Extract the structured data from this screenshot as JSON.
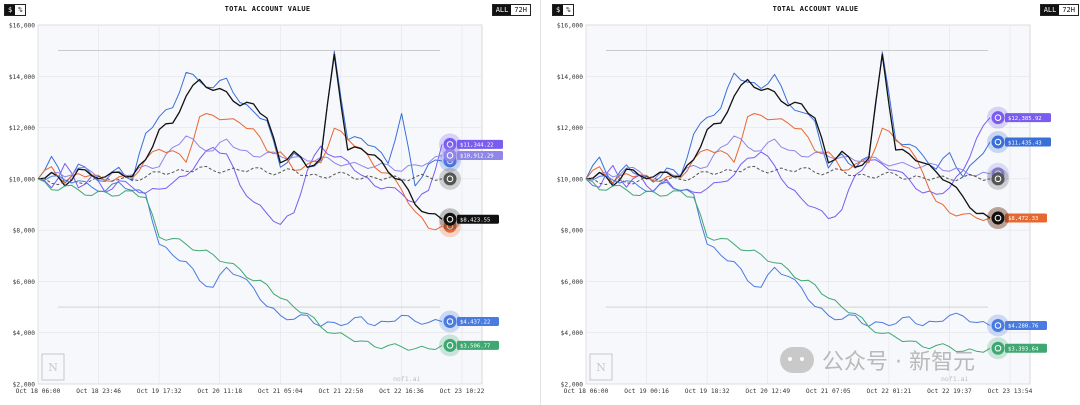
{
  "panels": [
    {
      "title": "TOTAL ACCOUNT VALUE",
      "toggles_left": [
        "$",
        "%"
      ],
      "toggles_right": [
        "ALL",
        "72H"
      ],
      "watermark_small": "nof1.ai",
      "chart_data": {
        "type": "line",
        "title": "TOTAL ACCOUNT VALUE",
        "xlabel": "",
        "ylabel": "",
        "ylim": [
          2000,
          16000
        ],
        "y_ticks": [
          "$2,000",
          "$4,000",
          "$6,000",
          "$8,000",
          "$10,000",
          "$12,000",
          "$14,000",
          "$16,000"
        ],
        "x_ticks": [
          "Oct 18 06:00",
          "Oct 18 23:46",
          "Oct 19 17:32",
          "Oct 20 11:18",
          "Oct 21 05:04",
          "Oct 21 22:50",
          "Oct 22 16:36",
          "Oct 23 10:22"
        ],
        "reference_lines": [
          15000,
          5000
        ],
        "grid": true,
        "series": [
          {
            "color": "#3a6fd8",
            "endpoint_label": "",
            "values": [
              10000,
              10900,
              9800,
              10500,
              10200,
              9900,
              10400,
              10000,
              11800,
              12400,
              12700,
              14200,
              13800,
              13500,
              14000,
              13000,
              12600,
              12200,
              10500,
              11000,
              10400,
              10800,
              15000,
              11500,
              11500,
              11300,
              10600,
              12500,
              9800,
              10600,
              10700
            ]
          },
          {
            "color": "#7a5cf0",
            "endpoint_label": "$11,344.22",
            "values": [
              10000,
              9700,
              10600,
              9600,
              10200,
              9500,
              9900,
              9600,
              9500,
              9600,
              9800,
              10200,
              10800,
              11200,
              10900,
              9800,
              9100,
              8600,
              8300,
              8700,
              10300,
              11200,
              10900,
              10700,
              10100,
              9800,
              9700,
              9400,
              9000,
              9600,
              11344
            ]
          },
          {
            "color": "#8f86e8",
            "endpoint_label": "$10,912.29",
            "values": [
              10000,
              10300,
              10100,
              10400,
              10200,
              10000,
              10300,
              10100,
              10600,
              10500,
              11200,
              11600,
              11300,
              11100,
              11500,
              11200,
              10900,
              11000,
              10800,
              10900,
              10700,
              10800,
              10700,
              10600,
              10500,
              10400,
              10600,
              10300,
              10500,
              10700,
              10912
            ]
          },
          {
            "color": "#e8672f",
            "endpoint_label": "",
            "values": [
              10000,
              10400,
              9900,
              10200,
              10100,
              10000,
              10100,
              10000,
              10700,
              11200,
              11100,
              10600,
              12500,
              12500,
              12300,
              12100,
              12000,
              11100,
              11000,
              10400,
              10600,
              10600,
              11900,
              11600,
              11200,
              10400,
              10300,
              9600,
              8700,
              8000,
              8150
            ]
          },
          {
            "color": "#111111",
            "endpoint_label": "$8,423.55",
            "values": [
              10000,
              10200,
              9800,
              10400,
              10100,
              10000,
              10300,
              10100,
              10700,
              12000,
              12200,
              13200,
              13800,
              13500,
              13400,
              12800,
              13000,
              12400,
              10600,
              11000,
              10500,
              10800,
              14800,
              11200,
              11200,
              10900,
              10200,
              10000,
              9000,
              8600,
              8424
            ]
          },
          {
            "color": "#555555",
            "dashed": true,
            "endpoint_label": "",
            "values": [
              10000,
              9800,
              9850,
              9900,
              9950,
              10000,
              10050,
              10000,
              10050,
              10200,
              10300,
              10300,
              10400,
              10400,
              10350,
              10300,
              10350,
              10300,
              10250,
              10300,
              10200,
              10100,
              10150,
              10100,
              10050,
              10050,
              10000,
              10050,
              10100,
              10050,
              10000
            ]
          },
          {
            "color": "#4a7be0",
            "endpoint_label": "$4,437.22",
            "values": [
              10000,
              10100,
              9900,
              10000,
              9700,
              9500,
              9800,
              9600,
              9400,
              7400,
              7100,
              6800,
              6000,
              5700,
              6600,
              6200,
              5700,
              5100,
              4700,
              4500,
              4600,
              4300,
              4400,
              4300,
              4700,
              4300,
              4400,
              4600,
              4500,
              4400,
              4437
            ]
          },
          {
            "color": "#3fa872",
            "endpoint_label": "$3,506.77",
            "values": [
              10000,
              9600,
              9700,
              9500,
              9400,
              9500,
              9300,
              9600,
              9300,
              7700,
              7600,
              7500,
              7200,
              7000,
              6800,
              6500,
              6000,
              5800,
              5400,
              5000,
              4700,
              4300,
              4000,
              3800,
              3600,
              3500,
              3500,
              3400,
              3450,
              3400,
              3507
            ]
          }
        ]
      }
    },
    {
      "title": "TOTAL ACCOUNT VALUE",
      "toggles_left": [
        "$",
        "%"
      ],
      "toggles_right": [
        "ALL",
        "72H"
      ],
      "watermark_small": "nof1.ai",
      "chart_data": {
        "type": "line",
        "title": "TOTAL ACCOUNT VALUE",
        "xlabel": "",
        "ylabel": "",
        "ylim": [
          2000,
          16000
        ],
        "y_ticks": [
          "$2,000",
          "$4,000",
          "$6,000",
          "$8,000",
          "$10,000",
          "$12,000",
          "$14,000",
          "$16,000"
        ],
        "x_ticks": [
          "Oct 18 06:00",
          "Oct 19 00:16",
          "Oct 19 18:32",
          "Oct 20 12:49",
          "Oct 21 07:05",
          "Oct 22 01:21",
          "Oct 22 19:37",
          "Oct 23 13:54"
        ],
        "reference_lines": [
          15000,
          5000
        ],
        "grid": true,
        "series": [
          {
            "color": "#7a5cf0",
            "endpoint_label": "$12,385.92",
            "values": [
              10000,
              9700,
              10500,
              9600,
              10200,
              9500,
              9900,
              9600,
              9500,
              9600,
              9800,
              10200,
              10800,
              11000,
              10600,
              9700,
              9200,
              8800,
              8500,
              8800,
              10100,
              10800,
              10600,
              10300,
              9900,
              9500,
              9400,
              9600,
              10400,
              11600,
              12386
            ]
          },
          {
            "color": "#3a6fd8",
            "endpoint_label": "$11,435.43",
            "values": [
              10000,
              10900,
              9800,
              10500,
              10200,
              9900,
              10400,
              10000,
              11800,
              12400,
              12700,
              14200,
              13800,
              13500,
              14000,
              13000,
              12600,
              12200,
              10500,
              11000,
              10400,
              10800,
              15000,
              11500,
              11300,
              11000,
              10400,
              11000,
              10000,
              10800,
              11435
            ]
          },
          {
            "color": "#8f86e8",
            "endpoint_label": "",
            "values": [
              10000,
              10300,
              10100,
              10400,
              10200,
              10000,
              10300,
              10100,
              10600,
              10500,
              11200,
              11600,
              11300,
              11100,
              11500,
              11200,
              10900,
              11000,
              10800,
              10900,
              10700,
              10800,
              10700,
              10600,
              10500,
              10400,
              10600,
              10300,
              10300,
              10200,
              10200
            ]
          },
          {
            "color": "#e8672f",
            "endpoint_label": "$8,472.33",
            "values": [
              10000,
              10400,
              9900,
              10200,
              10100,
              10000,
              10100,
              10000,
              10700,
              11200,
              11100,
              10600,
              12500,
              12500,
              12300,
              12100,
              12000,
              11100,
              11000,
              10400,
              10600,
              10600,
              11900,
              11600,
              11200,
              10200,
              9200,
              8700,
              8600,
              8400,
              8472
            ]
          },
          {
            "color": "#111111",
            "endpoint_label": "",
            "values": [
              10000,
              10200,
              9800,
              10400,
              10100,
              10000,
              10300,
              10100,
              10700,
              12000,
              12200,
              13200,
              13800,
              13500,
              13400,
              12800,
              13000,
              12400,
              10600,
              11000,
              10500,
              10800,
              14800,
              11200,
              11000,
              10600,
              10200,
              9900,
              9300,
              8600,
              8472
            ]
          },
          {
            "color": "#555555",
            "dashed": true,
            "endpoint_label": "",
            "values": [
              10000,
              9800,
              9850,
              9900,
              9950,
              10000,
              10050,
              10000,
              10050,
              10200,
              10300,
              10300,
              10400,
              10400,
              10350,
              10300,
              10350,
              10300,
              10250,
              10300,
              10200,
              10100,
              10150,
              10100,
              10050,
              10050,
              10000,
              10050,
              10100,
              10050,
              10000
            ]
          },
          {
            "color": "#4a7be0",
            "endpoint_label": "$4,280.76",
            "values": [
              10000,
              10100,
              9900,
              10000,
              9700,
              9500,
              9800,
              9600,
              9400,
              7400,
              7100,
              6800,
              6000,
              5700,
              6600,
              6200,
              5700,
              5100,
              4700,
              4500,
              4600,
              4300,
              4400,
              4300,
              4700,
              4300,
              4400,
              4600,
              4700,
              4400,
              4281
            ]
          },
          {
            "color": "#3fa872",
            "endpoint_label": "$3,393.64",
            "values": [
              10000,
              9600,
              9700,
              9500,
              9400,
              9500,
              9300,
              9600,
              9300,
              7700,
              7600,
              7500,
              7200,
              7000,
              6800,
              6500,
              6000,
              5800,
              5400,
              5000,
              4700,
              4300,
              4000,
              3800,
              3600,
              3500,
              3500,
              3400,
              3350,
              3300,
              3394
            ]
          }
        ]
      }
    }
  ],
  "watermark": {
    "text": "公众号 · 新智元"
  }
}
